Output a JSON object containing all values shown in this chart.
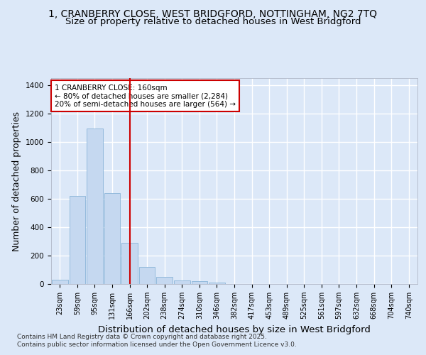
{
  "title_line1": "1, CRANBERRY CLOSE, WEST BRIDGFORD, NOTTINGHAM, NG2 7TQ",
  "title_line2": "Size of property relative to detached houses in West Bridgford",
  "xlabel": "Distribution of detached houses by size in West Bridgford",
  "ylabel": "Number of detached properties",
  "categories": [
    "23sqm",
    "59sqm",
    "95sqm",
    "131sqm",
    "166sqm",
    "202sqm",
    "238sqm",
    "274sqm",
    "310sqm",
    "346sqm",
    "382sqm",
    "417sqm",
    "453sqm",
    "489sqm",
    "525sqm",
    "561sqm",
    "597sqm",
    "632sqm",
    "668sqm",
    "704sqm",
    "740sqm"
  ],
  "values": [
    30,
    620,
    1095,
    640,
    290,
    120,
    50,
    25,
    20,
    10,
    0,
    0,
    0,
    0,
    0,
    0,
    0,
    0,
    0,
    0,
    0
  ],
  "bar_color": "#c5d8f0",
  "bar_edge_color": "#8ab4d8",
  "vline_x": 4.0,
  "vline_color": "#cc0000",
  "annotation_text": "1 CRANBERRY CLOSE: 160sqm\n← 80% of detached houses are smaller (2,284)\n20% of semi-detached houses are larger (564) →",
  "annotation_box_color": "#ffffff",
  "annotation_box_edge": "#cc0000",
  "ylim": [
    0,
    1450
  ],
  "yticks": [
    0,
    200,
    400,
    600,
    800,
    1000,
    1200,
    1400
  ],
  "background_color": "#dce8f8",
  "plot_background": "#dce8f8",
  "grid_color": "#ffffff",
  "footer_line1": "Contains HM Land Registry data © Crown copyright and database right 2025.",
  "footer_line2": "Contains public sector information licensed under the Open Government Licence v3.0.",
  "title_fontsize": 10,
  "subtitle_fontsize": 9.5,
  "axis_label_fontsize": 9,
  "tick_fontsize": 7,
  "footer_fontsize": 6.5
}
